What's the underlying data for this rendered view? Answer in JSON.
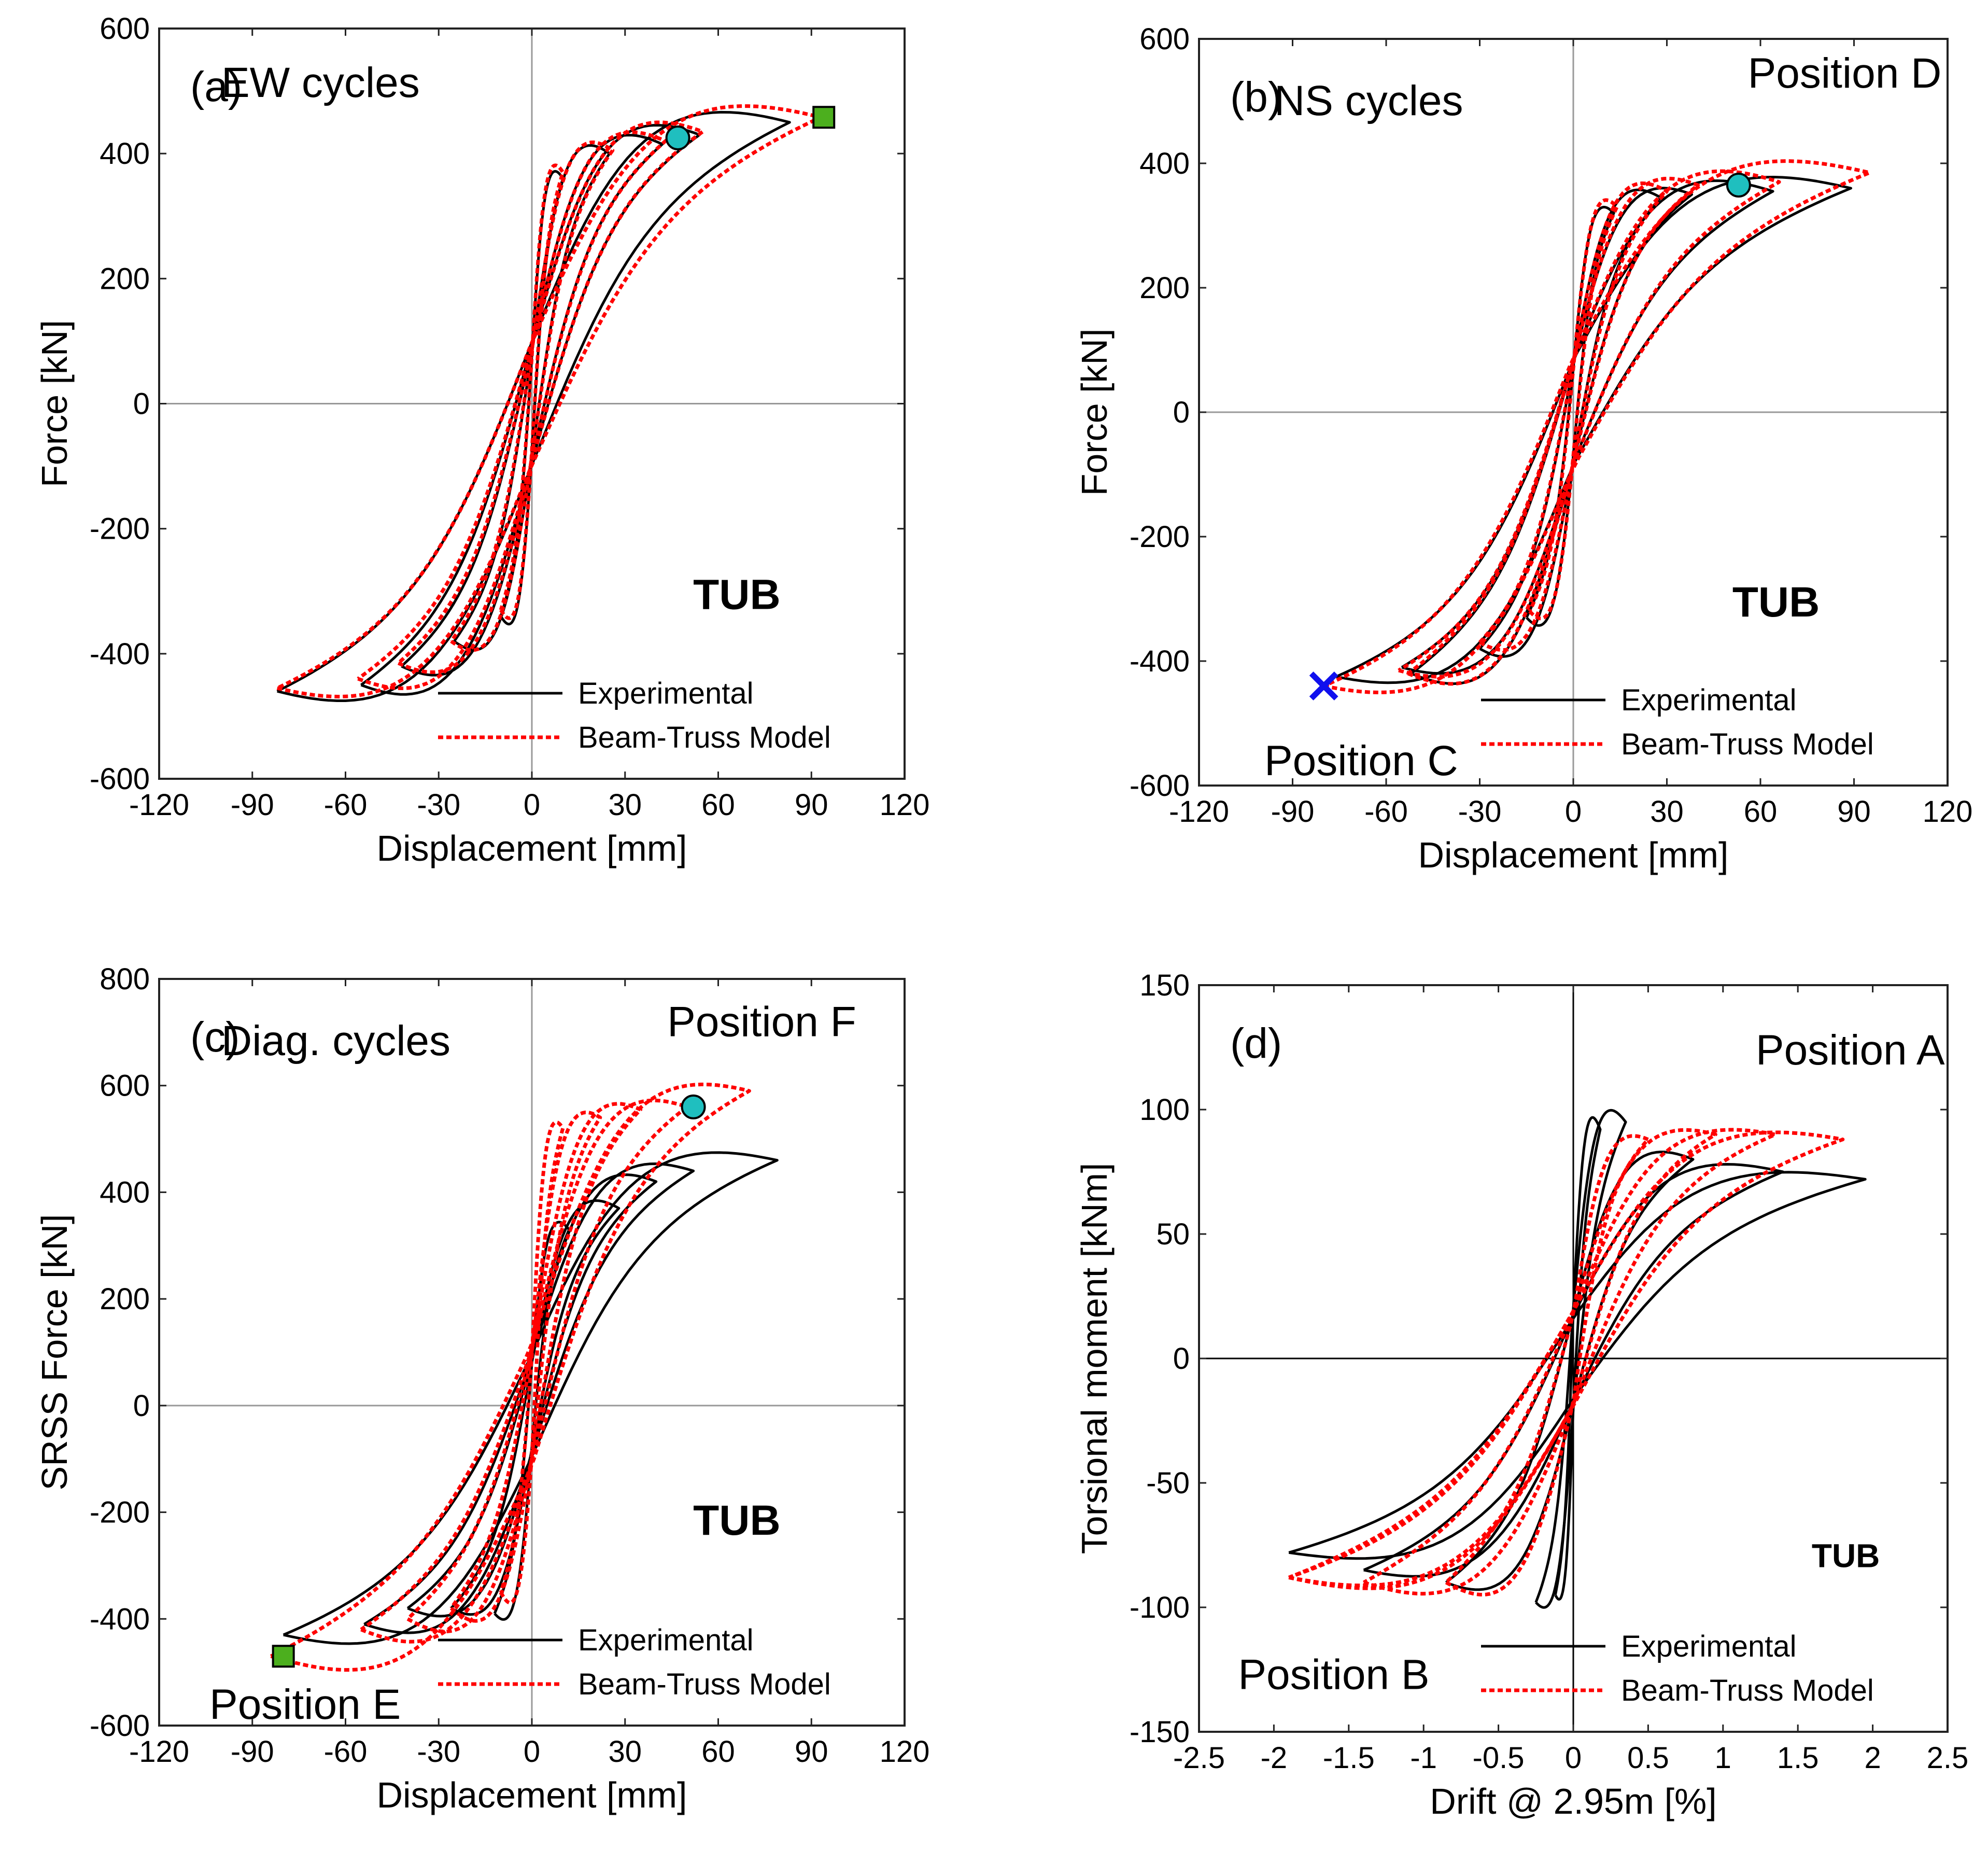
{
  "colors": {
    "experimental": "#000000",
    "model": "#ff0000",
    "circle_marker": "#1fbfbf",
    "square_marker": "#4caf1e",
    "x_marker": "#1010ee",
    "zero_line": "#999999"
  },
  "chart_data": [
    {
      "id": "a",
      "type": "line",
      "panel_label": "(a)",
      "title": "EW cycles",
      "xlabel": "Displacement [mm]",
      "ylabel": "Force [kN]",
      "xlim": [
        -120,
        120
      ],
      "ylim": [
        -600,
        600
      ],
      "xticks": [
        -120,
        -90,
        -60,
        -30,
        0,
        30,
        60,
        90,
        120
      ],
      "yticks": [
        -600,
        -400,
        -200,
        0,
        200,
        400,
        600
      ],
      "zero_line_color": "#999999",
      "legend": [
        "Experimental",
        "Beam-Truss Model"
      ],
      "annotations": [
        {
          "text": "TUB",
          "x": 66,
          "y": -305,
          "bold": true,
          "align": "middle"
        }
      ],
      "markers": [
        {
          "type": "circle",
          "x": 47,
          "y": 425
        },
        {
          "type": "square",
          "x": 94,
          "y": 458
        }
      ],
      "series": [
        {
          "name": "Experimental",
          "style": "solid",
          "loops": [
            {
              "A": 10,
              "B": 10,
              "Fp": 360,
              "Fn": -340
            },
            {
              "A": 25,
              "B": 25,
              "Fp": 400,
              "Fn": -380
            },
            {
              "A": 42,
              "B": 42,
              "Fp": 415,
              "Fn": -420
            },
            {
              "A": 54,
              "B": 55,
              "Fp": 430,
              "Fn": -450
            },
            {
              "A": 83,
              "B": 82,
              "Fp": 450,
              "Fn": -460
            }
          ]
        },
        {
          "name": "Beam-Truss Model",
          "style": "dotted",
          "loops": [
            {
              "A": 10,
              "B": 10,
              "Fp": 370,
              "Fn": -330
            },
            {
              "A": 26,
              "B": 26,
              "Fp": 405,
              "Fn": -380
            },
            {
              "A": 43,
              "B": 43,
              "Fp": 420,
              "Fn": -415
            },
            {
              "A": 55,
              "B": 56,
              "Fp": 435,
              "Fn": -440
            },
            {
              "A": 93,
              "B": 82,
              "Fp": 458,
              "Fn": -455
            }
          ]
        }
      ]
    },
    {
      "id": "b",
      "type": "line",
      "panel_label": "(b)",
      "title": "NS cycles",
      "xlabel": "Displacement [mm]",
      "ylabel": "Force [kN]",
      "xlim": [
        -120,
        120
      ],
      "ylim": [
        -600,
        600
      ],
      "xticks": [
        -120,
        -90,
        -60,
        -30,
        0,
        30,
        60,
        90,
        120
      ],
      "yticks": [
        -600,
        -400,
        -200,
        0,
        200,
        400,
        600
      ],
      "zero_line_color": "#999999",
      "legend": [
        "Experimental",
        "Beam-Truss Model"
      ],
      "annotations": [
        {
          "text": "Position D",
          "x": 87,
          "y": 545,
          "bold": false,
          "align": "middle"
        },
        {
          "text": "Position C",
          "x": -68,
          "y": -560,
          "bold": false,
          "align": "middle"
        },
        {
          "text": "TUB",
          "x": 65,
          "y": -305,
          "bold": true,
          "align": "middle"
        }
      ],
      "markers": [
        {
          "type": "circle",
          "x": 53,
          "y": 365
        },
        {
          "type": "x",
          "x": -80,
          "y": -440
        }
      ],
      "series": [
        {
          "name": "Experimental",
          "style": "solid",
          "loops": [
            {
              "A": 13,
              "B": 15,
              "Fp": 320,
              "Fn": -330
            },
            {
              "A": 28,
              "B": 30,
              "Fp": 345,
              "Fn": -380
            },
            {
              "A": 38,
              "B": 52,
              "Fp": 350,
              "Fn": -420
            },
            {
              "A": 64,
              "B": 55,
              "Fp": 355,
              "Fn": -410
            },
            {
              "A": 89,
              "B": 76,
              "Fp": 360,
              "Fn": -425
            }
          ]
        },
        {
          "name": "Beam-Truss Model",
          "style": "dotted",
          "loops": [
            {
              "A": 14,
              "B": 14,
              "Fp": 330,
              "Fn": -320
            },
            {
              "A": 30,
              "B": 30,
              "Fp": 355,
              "Fn": -370
            },
            {
              "A": 40,
              "B": 53,
              "Fp": 365,
              "Fn": -420
            },
            {
              "A": 66,
              "B": 56,
              "Fp": 370,
              "Fn": -415
            },
            {
              "A": 95,
              "B": 80,
              "Fp": 385,
              "Fn": -440
            }
          ]
        }
      ]
    },
    {
      "id": "c",
      "type": "line",
      "panel_label": "(c)",
      "title": "Diag. cycles",
      "xlabel": "Displacement [mm]",
      "ylabel": "SRSS Force [kN]",
      "xlim": [
        -120,
        120
      ],
      "ylim": [
        -600,
        800
      ],
      "xticks": [
        -120,
        -90,
        -60,
        -30,
        0,
        30,
        60,
        90,
        120
      ],
      "yticks": [
        -600,
        -400,
        -200,
        0,
        200,
        400,
        600,
        800
      ],
      "zero_line_color": "#999999",
      "legend": [
        "Experimental",
        "Beam-Truss Model"
      ],
      "annotations": [
        {
          "text": "Position F",
          "x": 74,
          "y": 720,
          "bold": false,
          "align": "middle"
        },
        {
          "text": "Position E",
          "x": -73,
          "y": -560,
          "bold": false,
          "align": "middle"
        },
        {
          "text": "TUB",
          "x": 66,
          "y": -215,
          "bold": true,
          "align": "middle"
        }
      ],
      "markers": [
        {
          "type": "circle",
          "x": 52,
          "y": 560
        },
        {
          "type": "square",
          "x": -80,
          "y": -470
        }
      ],
      "series": [
        {
          "name": "Experimental",
          "style": "solid",
          "loops": [
            {
              "A": 12,
              "B": 12,
              "Fp": 330,
              "Fn": -390
            },
            {
              "A": 28,
              "B": 26,
              "Fp": 370,
              "Fn": -380
            },
            {
              "A": 40,
              "B": 40,
              "Fp": 420,
              "Fn": -380
            },
            {
              "A": 52,
              "B": 54,
              "Fp": 440,
              "Fn": -410
            },
            {
              "A": 79,
              "B": 80,
              "Fp": 460,
              "Fn": -430
            }
          ]
        },
        {
          "name": "Beam-Truss Model",
          "style": "dotted",
          "loops": [
            {
              "A": 10,
              "B": 10,
              "Fp": 520,
              "Fn": -350
            },
            {
              "A": 22,
              "B": 26,
              "Fp": 540,
              "Fn": -380
            },
            {
              "A": 35,
              "B": 40,
              "Fp": 555,
              "Fn": -400
            },
            {
              "A": 50,
              "B": 55,
              "Fp": 560,
              "Fn": -420
            },
            {
              "A": 70,
              "B": 84,
              "Fp": 590,
              "Fn": -470
            }
          ]
        }
      ]
    },
    {
      "id": "d",
      "type": "line",
      "panel_label": "(d)",
      "title": "",
      "xlabel": "Drift @ 2.95m [%]",
      "ylabel": "Torsional moment [kNm]",
      "xlim": [
        -2.5,
        2.5
      ],
      "ylim": [
        -150,
        150
      ],
      "xticks": [
        -2.5,
        -2,
        -1.5,
        -1,
        -0.5,
        0,
        0.5,
        1,
        1.5,
        2,
        2.5
      ],
      "yticks": [
        -150,
        -100,
        -50,
        0,
        50,
        100,
        150
      ],
      "zero_line_color": "#000000",
      "legend": [
        "Experimental",
        "Beam-Truss Model"
      ],
      "annotations": [
        {
          "text": "Position A",
          "x": 1.85,
          "y": 124,
          "bold": false,
          "align": "middle"
        },
        {
          "text": "Position B",
          "x": -1.6,
          "y": -127,
          "bold": false,
          "align": "middle"
        },
        {
          "text": "TUB",
          "x": 1.82,
          "y": -78,
          "bold": true,
          "align": "middle",
          "small": true
        }
      ],
      "markers": [],
      "series": [
        {
          "name": "Experimental",
          "style": "solid",
          "loops": [
            {
              "A": 0.18,
              "B": 0.12,
              "Fp": 92,
              "Fn": -95
            },
            {
              "A": 0.35,
              "B": 0.25,
              "Fp": 95,
              "Fn": -98
            },
            {
              "A": 0.8,
              "B": 0.85,
              "Fp": 80,
              "Fn": -90
            },
            {
              "A": 1.4,
              "B": 1.4,
              "Fp": 75,
              "Fn": -85
            },
            {
              "A": 1.95,
              "B": 1.9,
              "Fp": 72,
              "Fn": -78
            }
          ]
        },
        {
          "name": "Beam-Truss Model",
          "style": "dotted",
          "loops": [
            {
              "A": 0.5,
              "B": 0.85,
              "Fp": 88,
              "Fn": -90
            },
            {
              "A": 0.95,
              "B": 1.4,
              "Fp": 90,
              "Fn": -90
            },
            {
              "A": 1.35,
              "B": 1.9,
              "Fp": 90,
              "Fn": -88
            },
            {
              "A": 1.8,
              "B": 1.9,
              "Fp": 88,
              "Fn": -88
            }
          ]
        }
      ]
    }
  ]
}
